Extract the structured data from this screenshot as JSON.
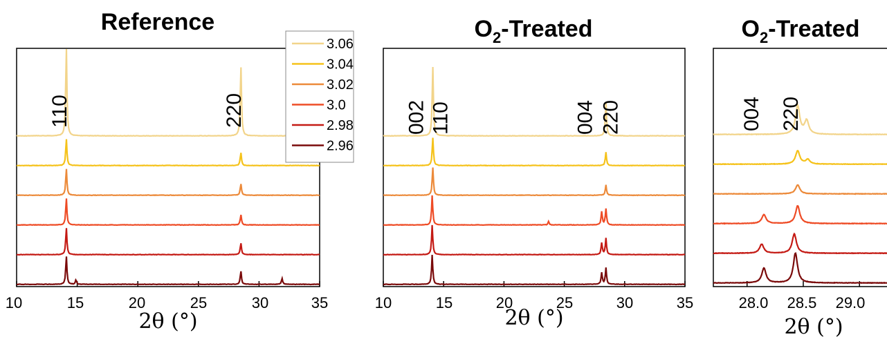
{
  "chart_data": [
    {
      "type": "line",
      "title": "Reference",
      "xlabel": "2θ (°)",
      "ylabel": "",
      "xlim": [
        10,
        35
      ],
      "x_ticks": [
        10,
        15,
        20,
        25,
        30,
        35
      ],
      "x_tick_labels": [
        "10",
        "15",
        "20",
        "25",
        "30",
        "35"
      ],
      "annotations": [
        {
          "text": "110",
          "x": 14.1
        },
        {
          "text": "220",
          "x": 28.5
        }
      ],
      "series": [
        {
          "name": "3.06",
          "color": "#f2d48a",
          "offset": 5,
          "peaks": [
            {
              "x": 14.1,
              "height": 3.0
            },
            {
              "x": 28.5,
              "height": 2.4
            }
          ]
        },
        {
          "name": "3.04",
          "color": "#f5c21a",
          "offset": 4,
          "peaks": [
            {
              "x": 14.1,
              "height": 0.9
            },
            {
              "x": 28.5,
              "height": 0.45
            }
          ]
        },
        {
          "name": "3.02",
          "color": "#ec8a3a",
          "offset": 3,
          "peaks": [
            {
              "x": 14.1,
              "height": 0.9
            },
            {
              "x": 28.5,
              "height": 0.4
            }
          ]
        },
        {
          "name": "3.0",
          "color": "#ee4b25",
          "offset": 2,
          "peaks": [
            {
              "x": 14.1,
              "height": 0.9
            },
            {
              "x": 28.5,
              "height": 0.35
            }
          ]
        },
        {
          "name": "2.98",
          "color": "#c41a14",
          "offset": 1,
          "peaks": [
            {
              "x": 14.1,
              "height": 0.9
            },
            {
              "x": 28.5,
              "height": 0.4
            }
          ]
        },
        {
          "name": "2.96",
          "color": "#7a0a0a",
          "offset": 0,
          "peaks": [
            {
              "x": 14.1,
              "height": 0.95
            },
            {
              "x": 14.9,
              "height": 0.15
            },
            {
              "x": 28.5,
              "height": 0.45
            },
            {
              "x": 31.9,
              "height": 0.2
            }
          ]
        }
      ]
    },
    {
      "type": "line",
      "title": "O₂-Treated",
      "xlabel": "2θ (°)",
      "ylabel": "",
      "xlim": [
        10,
        35
      ],
      "x_ticks": [
        10,
        15,
        20,
        25,
        30,
        35
      ],
      "x_tick_labels": [
        "10",
        "15",
        "20",
        "25",
        "30",
        "35"
      ],
      "annotations": [
        {
          "text": "002",
          "x": 13.3
        },
        {
          "text": "110",
          "x": 15.3
        },
        {
          "text": "004",
          "x": 27.3
        },
        {
          "text": "220",
          "x": 29.4
        }
      ],
      "series": [
        {
          "name": "3.06",
          "color": "#f2d48a",
          "offset": 5,
          "peaks": [
            {
              "x": 14.1,
              "height": 2.35
            },
            {
              "x": 28.45,
              "height": 1.15
            }
          ]
        },
        {
          "name": "3.04",
          "color": "#f5c21a",
          "offset": 4,
          "peaks": [
            {
              "x": 14.1,
              "height": 0.95
            },
            {
              "x": 28.45,
              "height": 0.45
            }
          ]
        },
        {
          "name": "3.02",
          "color": "#ec8a3a",
          "offset": 3,
          "peaks": [
            {
              "x": 14.1,
              "height": 0.95
            },
            {
              "x": 28.45,
              "height": 0.35
            }
          ]
        },
        {
          "name": "3.0",
          "color": "#ee4b25",
          "offset": 2,
          "peaks": [
            {
              "x": 14.05,
              "height": 1.0
            },
            {
              "x": 23.7,
              "height": 0.12
            },
            {
              "x": 28.1,
              "height": 0.45
            },
            {
              "x": 28.45,
              "height": 0.55
            }
          ]
        },
        {
          "name": "2.98",
          "color": "#c41a14",
          "offset": 1,
          "peaks": [
            {
              "x": 14.05,
              "height": 1.0
            },
            {
              "x": 28.1,
              "height": 0.4
            },
            {
              "x": 28.45,
              "height": 0.55
            }
          ]
        },
        {
          "name": "2.96",
          "color": "#7a0a0a",
          "offset": 0,
          "peaks": [
            {
              "x": 14.05,
              "height": 1.0
            },
            {
              "x": 28.1,
              "height": 0.4
            },
            {
              "x": 28.45,
              "height": 0.55
            }
          ]
        }
      ]
    },
    {
      "type": "line",
      "title": "O₂-Treated",
      "xlabel": "2θ (°)",
      "ylabel": "",
      "xlim": [
        27.7,
        29.3
      ],
      "x_ticks": [
        28.0,
        28.5,
        29.0
      ],
      "x_tick_labels": [
        "28.0",
        "28.5",
        "29.0"
      ],
      "annotations": [
        {
          "text": "004",
          "x": 28.1
        },
        {
          "text": "220",
          "x": 28.45
        }
      ],
      "series": [
        {
          "name": "3.06",
          "color": "#f2d48a",
          "offset": 5,
          "peaks": [
            {
              "x": 28.45,
              "height": 0.95
            },
            {
              "x": 28.53,
              "height": 0.45
            }
          ]
        },
        {
          "name": "3.04",
          "color": "#f5c21a",
          "offset": 4,
          "peaks": [
            {
              "x": 28.45,
              "height": 0.45
            },
            {
              "x": 28.54,
              "height": 0.15
            }
          ]
        },
        {
          "name": "3.02",
          "color": "#ec8a3a",
          "offset": 3,
          "peaks": [
            {
              "x": 28.45,
              "height": 0.3
            }
          ]
        },
        {
          "name": "3.0",
          "color": "#ee4b25",
          "offset": 2,
          "peaks": [
            {
              "x": 28.15,
              "height": 0.3
            },
            {
              "x": 28.45,
              "height": 0.6
            }
          ]
        },
        {
          "name": "2.98",
          "color": "#c41a14",
          "offset": 1,
          "peaks": [
            {
              "x": 28.13,
              "height": 0.3
            },
            {
              "x": 28.42,
              "height": 0.65
            }
          ]
        },
        {
          "name": "2.96",
          "color": "#7a0a0a",
          "offset": 0,
          "peaks": [
            {
              "x": 28.15,
              "height": 0.5
            },
            {
              "x": 28.43,
              "height": 1.0
            }
          ]
        }
      ]
    }
  ],
  "legend": {
    "placement": "top-right of first panel",
    "entries": [
      {
        "label": "3.06",
        "color": "#f2d48a"
      },
      {
        "label": "3.04",
        "color": "#f5c21a"
      },
      {
        "label": "3.02",
        "color": "#ec8a3a"
      },
      {
        "label": "3.0",
        "color": "#ee4b25"
      },
      {
        "label": "2.98",
        "color": "#c41a14"
      },
      {
        "label": "2.96",
        "color": "#7a0a0a"
      }
    ]
  }
}
